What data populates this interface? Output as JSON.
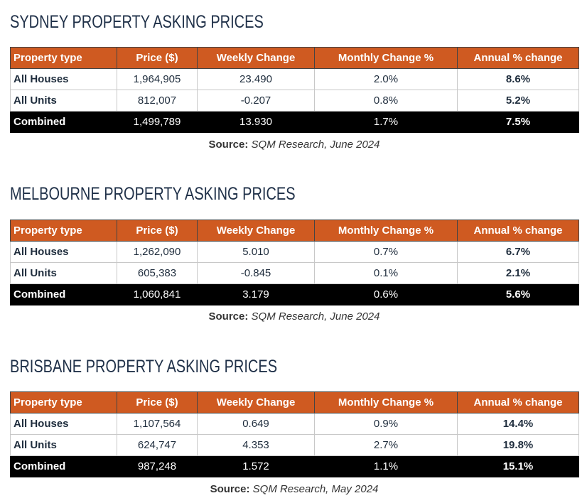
{
  "headers": [
    "Property type",
    "Price ($)",
    "Weekly Change",
    "Monthly Change %",
    "Annual % change"
  ],
  "source_label": "Source:",
  "tables": [
    {
      "title": "SYDNEY PROPERTY ASKING PRICES",
      "rows": [
        [
          "All Houses",
          "1,964,905",
          "23.490",
          "2.0%",
          "8.6%"
        ],
        [
          "All Units",
          "812,007",
          "-0.207",
          "0.8%",
          "5.2%"
        ],
        [
          "Combined",
          "1,499,789",
          "13.930",
          "1.7%",
          "7.5%"
        ]
      ],
      "source": "SQM Research, June 2024"
    },
    {
      "title": "MELBOURNE PROPERTY ASKING PRICES",
      "rows": [
        [
          "All Houses",
          "1,262,090",
          "5.010",
          "0.7%",
          "6.7%"
        ],
        [
          "All Units",
          "605,383",
          "-0.845",
          "0.1%",
          "2.1%"
        ],
        [
          "Combined",
          "1,060,841",
          "3.179",
          "0.6%",
          "5.6%"
        ]
      ],
      "source": "SQM Research, June 2024"
    },
    {
      "title": "BRISBANE PROPERTY ASKING PRICES",
      "rows": [
        [
          "All Houses",
          "1,107,564",
          "0.649",
          "0.9%",
          "14.4%"
        ],
        [
          "All Units",
          "624,747",
          "4.353",
          "2.7%",
          "19.8%"
        ],
        [
          "Combined",
          "987,248",
          "1.572",
          "1.1%",
          "15.1%"
        ]
      ],
      "source": "SQM Research, May 2024"
    }
  ]
}
